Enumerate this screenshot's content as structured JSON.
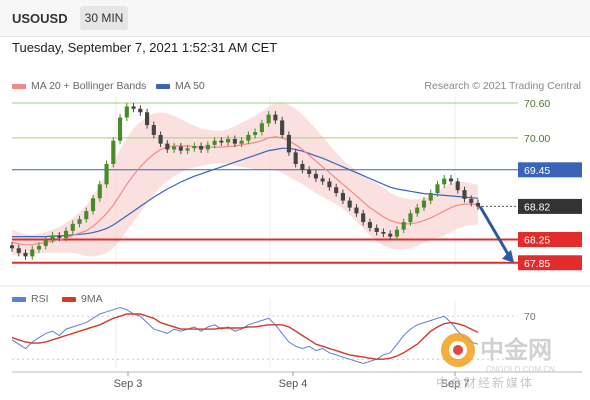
{
  "header": {
    "symbol": "USOUSD",
    "timeframe": "30 MIN"
  },
  "timestamp": "Tuesday, September 7, 2021 1:52:31 AM CET",
  "legend": {
    "ma20_label": "MA 20 + Bollinger Bands",
    "ma50_label": "MA 50",
    "rsi_label": "RSI",
    "rsi_ma_label": "9MA"
  },
  "credit": "Research © 2021 Trading Central",
  "watermark": {
    "logo_text": "中金网",
    "url": "CNGOLD.COM.CN",
    "tagline": "中金财经新媒体"
  },
  "colors": {
    "bullish": "#4a8a2a",
    "bearish": "#444444",
    "ma20": "#f08a8a",
    "bands": "#f9d6d6",
    "ma50": "#3a64b8",
    "resistance": "#a6cf7a",
    "support": "#e22b2b",
    "pivot": "#3a64b8",
    "current": "#333333",
    "arrow": "#2c5aa0",
    "rsi": "#5a82d0",
    "rsi_ma": "#d23a2a"
  },
  "chart_data": {
    "type": "line",
    "title": "USOUSD",
    "subtitle": "30 MIN",
    "price_axis_range": [
      67.76,
      70.72
    ],
    "x_tick_labels": [
      "Sep 3",
      "Sep 4",
      "Sep 7"
    ],
    "levels": [
      {
        "label": "70.60",
        "value": 70.6,
        "kind": "resistance"
      },
      {
        "label": "70.00",
        "value": 70.0,
        "kind": "resistance"
      },
      {
        "label": "69.45",
        "value": 69.45,
        "kind": "pivot"
      },
      {
        "label": "68.82",
        "value": 68.82,
        "kind": "current"
      },
      {
        "label": "68.25",
        "value": 68.25,
        "kind": "support"
      },
      {
        "label": "67.85",
        "value": 67.85,
        "kind": "support"
      }
    ],
    "price_series": {
      "name": "USOUSD",
      "values": [
        68.1,
        68.02,
        67.96,
        68.08,
        68.14,
        68.25,
        68.32,
        68.28,
        68.4,
        68.52,
        68.6,
        68.74,
        68.96,
        69.2,
        69.55,
        69.95,
        70.35,
        70.54,
        70.5,
        70.44,
        70.22,
        70.05,
        69.9,
        69.8,
        69.85,
        69.78,
        69.82,
        69.86,
        69.8,
        69.88,
        69.95,
        69.92,
        69.98,
        69.9,
        69.95,
        70.05,
        70.1,
        70.25,
        70.4,
        70.3,
        70.05,
        69.75,
        69.55,
        69.45,
        69.38,
        69.3,
        69.25,
        69.15,
        69.05,
        68.92,
        68.8,
        68.7,
        68.55,
        68.45,
        68.38,
        68.35,
        68.3,
        68.42,
        68.55,
        68.7,
        68.8,
        68.92,
        69.05,
        69.2,
        69.3,
        69.25,
        69.1,
        68.95,
        68.88,
        68.82
      ]
    },
    "ma20": [
      68.2,
      68.18,
      68.16,
      68.16,
      68.18,
      68.2,
      68.22,
      68.24,
      68.28,
      68.32,
      68.36,
      68.4,
      68.48,
      68.58,
      68.7,
      68.84,
      69.02,
      69.2,
      69.36,
      69.5,
      69.62,
      69.72,
      69.8,
      69.84,
      69.86,
      69.86,
      69.86,
      69.85,
      69.84,
      69.84,
      69.84,
      69.84,
      69.85,
      69.86,
      69.88,
      69.9,
      69.92,
      69.95,
      70.0,
      70.02,
      70.0,
      69.95,
      69.88,
      69.8,
      69.7,
      69.6,
      69.5,
      69.4,
      69.3,
      69.2,
      69.1,
      69.0,
      68.9,
      68.8,
      68.72,
      68.64,
      68.58,
      68.54,
      68.52,
      68.52,
      68.54,
      68.58,
      68.62,
      68.68,
      68.74,
      68.8,
      68.84,
      68.86,
      68.86,
      68.85
    ],
    "ma50": [
      68.3,
      68.3,
      68.3,
      68.3,
      68.3,
      68.3,
      68.31,
      68.31,
      68.32,
      68.33,
      68.34,
      68.35,
      68.37,
      68.4,
      68.44,
      68.5,
      68.58,
      68.66,
      68.74,
      68.82,
      68.9,
      68.98,
      69.05,
      69.12,
      69.18,
      69.24,
      69.29,
      69.34,
      69.38,
      69.42,
      69.46,
      69.5,
      69.54,
      69.58,
      69.62,
      69.66,
      69.7,
      69.74,
      69.78,
      69.8,
      69.82,
      69.82,
      69.8,
      69.77,
      69.73,
      69.69,
      69.65,
      69.6,
      69.55,
      69.5,
      69.45,
      69.4,
      69.35,
      69.3,
      69.25,
      69.2,
      69.15,
      69.12,
      69.1,
      69.08,
      69.06,
      69.04,
      69.03,
      69.02,
      69.01,
      69.0,
      68.99,
      68.98,
      68.97,
      68.96
    ],
    "band_width": [
      0.22,
      0.2,
      0.18,
      0.17,
      0.17,
      0.18,
      0.2,
      0.22,
      0.26,
      0.3,
      0.36,
      0.44,
      0.52,
      0.6,
      0.68,
      0.74,
      0.78,
      0.8,
      0.8,
      0.78,
      0.74,
      0.7,
      0.64,
      0.58,
      0.52,
      0.46,
      0.4,
      0.36,
      0.32,
      0.3,
      0.28,
      0.28,
      0.3,
      0.34,
      0.38,
      0.42,
      0.46,
      0.5,
      0.54,
      0.58,
      0.6,
      0.62,
      0.62,
      0.6,
      0.58,
      0.55,
      0.52,
      0.48,
      0.44,
      0.42,
      0.42,
      0.44,
      0.46,
      0.48,
      0.5,
      0.5,
      0.48,
      0.46,
      0.44,
      0.42,
      0.4,
      0.38,
      0.38,
      0.4,
      0.42,
      0.42,
      0.4,
      0.38,
      0.36,
      0.34
    ],
    "rsi": {
      "reference_level": 70,
      "rsi_values": [
        48,
        44,
        40,
        46,
        50,
        54,
        56,
        52,
        58,
        60,
        62,
        64,
        68,
        72,
        74,
        76,
        78,
        76,
        72,
        70,
        64,
        58,
        56,
        54,
        58,
        56,
        58,
        60,
        56,
        60,
        62,
        58,
        60,
        56,
        58,
        62,
        64,
        66,
        68,
        62,
        54,
        46,
        42,
        40,
        42,
        38,
        40,
        36,
        34,
        32,
        30,
        28,
        26,
        28,
        30,
        34,
        36,
        44,
        52,
        58,
        62,
        64,
        66,
        68,
        70,
        64,
        56,
        50,
        46,
        44
      ],
      "ma_values": [
        50,
        48,
        46,
        45,
        45,
        46,
        48,
        50,
        52,
        54,
        56,
        58,
        60,
        62,
        65,
        68,
        70,
        72,
        72,
        72,
        70,
        68,
        64,
        62,
        60,
        58,
        58,
        58,
        58,
        58,
        58,
        59,
        59,
        59,
        59,
        60,
        60,
        61,
        62,
        62,
        62,
        60,
        56,
        52,
        48,
        44,
        42,
        40,
        38,
        36,
        34,
        33,
        32,
        31,
        30,
        30,
        31,
        33,
        36,
        40,
        44,
        50,
        56,
        60,
        63,
        64,
        63,
        61,
        58,
        55
      ]
    }
  }
}
